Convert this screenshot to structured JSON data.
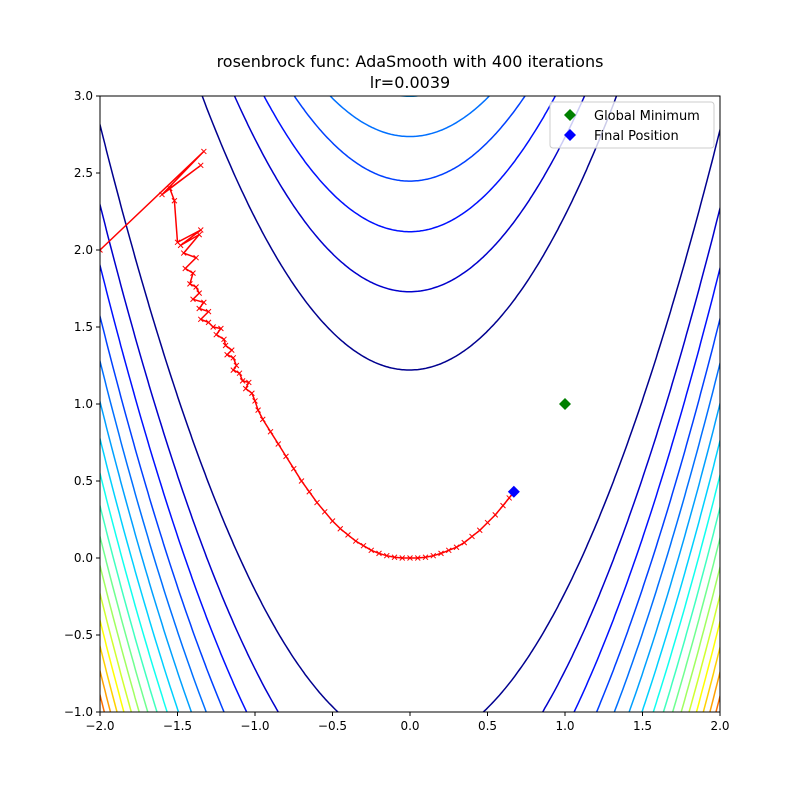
{
  "chart_data": {
    "type": "contour",
    "title": "rosenbrock func: AdaSmooth with 400 iterations",
    "subtitle": "lr=0.0039",
    "xlabel": "",
    "ylabel": "",
    "xlim": [
      -2.0,
      2.0
    ],
    "ylim": [
      -1.0,
      3.0
    ],
    "grid": false,
    "x_ticks": [
      -2.0,
      -1.5,
      -1.0,
      -0.5,
      0.0,
      0.5,
      1.0,
      1.5,
      2.0
    ],
    "y_ticks": [
      -1.0,
      -0.5,
      0.0,
      0.5,
      1.0,
      1.5,
      2.0,
      2.5,
      3.0
    ],
    "x_tick_labels": [
      "−2.0",
      "−1.5",
      "−1.0",
      "−0.5",
      "0.0",
      "0.5",
      "1.0",
      "1.5",
      "2.0"
    ],
    "y_tick_labels": [
      "−1.0",
      "−0.5",
      "0.0",
      "0.5",
      "1.0",
      "1.5",
      "2.0",
      "2.5",
      "3.0"
    ],
    "function": "rosenbrock",
    "contour_levels": [
      150,
      300,
      450,
      600,
      750,
      900,
      1050,
      1200,
      1350,
      1500,
      1650,
      1800,
      1950,
      2100,
      2250,
      2400,
      2550
    ],
    "contour_colors": [
      "#00008f",
      "#0000cc",
      "#0010ff",
      "#0040ff",
      "#0070ff",
      "#00a0ff",
      "#00d0ff",
      "#10ffef",
      "#40ffbf",
      "#70ff8f",
      "#a0ff60",
      "#d0ff30",
      "#ffff00",
      "#ffd000",
      "#ffa000",
      "#ff7000",
      "#ff4000"
    ],
    "legend": {
      "position": "upper right",
      "entries": [
        {
          "label": "Global Minimum",
          "marker": "diamond",
          "color": "#008000"
        },
        {
          "label": "Final Position",
          "marker": "diamond",
          "color": "#0000ff"
        }
      ]
    },
    "global_minimum": {
      "x": 1.0,
      "y": 1.0,
      "color": "#008000"
    },
    "final_position": {
      "x": 0.67,
      "y": 0.43,
      "color": "#0000ff"
    },
    "path_color": "#ff0000",
    "path": [
      [
        -2.0,
        2.0
      ],
      [
        -1.33,
        2.64
      ],
      [
        -1.6,
        2.36
      ],
      [
        -1.35,
        2.55
      ],
      [
        -1.55,
        2.4
      ],
      [
        -1.52,
        2.32
      ],
      [
        -1.5,
        2.05
      ],
      [
        -1.35,
        2.13
      ],
      [
        -1.48,
        2.03
      ],
      [
        -1.36,
        2.1
      ],
      [
        -1.46,
        1.98
      ],
      [
        -1.38,
        1.95
      ],
      [
        -1.45,
        1.88
      ],
      [
        -1.4,
        1.85
      ],
      [
        -1.42,
        1.78
      ],
      [
        -1.38,
        1.76
      ],
      [
        -1.36,
        1.72
      ],
      [
        -1.4,
        1.68
      ],
      [
        -1.33,
        1.66
      ],
      [
        -1.36,
        1.62
      ],
      [
        -1.3,
        1.6
      ],
      [
        -1.35,
        1.55
      ],
      [
        -1.3,
        1.53
      ],
      [
        -1.27,
        1.5
      ],
      [
        -1.22,
        1.49
      ],
      [
        -1.25,
        1.45
      ],
      [
        -1.2,
        1.42
      ],
      [
        -1.19,
        1.38
      ],
      [
        -1.15,
        1.35
      ],
      [
        -1.18,
        1.32
      ],
      [
        -1.14,
        1.3
      ],
      [
        -1.12,
        1.25
      ],
      [
        -1.14,
        1.22
      ],
      [
        -1.1,
        1.2
      ],
      [
        -1.08,
        1.15
      ],
      [
        -1.04,
        1.14
      ],
      [
        -1.06,
        1.1
      ],
      [
        -1.02,
        1.07
      ],
      [
        -1.0,
        1.02
      ],
      [
        -0.98,
        0.96
      ],
      [
        -0.95,
        0.9
      ],
      [
        -0.9,
        0.82
      ],
      [
        -0.85,
        0.74
      ],
      [
        -0.8,
        0.66
      ],
      [
        -0.75,
        0.58
      ],
      [
        -0.7,
        0.5
      ],
      [
        -0.65,
        0.43
      ],
      [
        -0.6,
        0.36
      ],
      [
        -0.55,
        0.3
      ],
      [
        -0.5,
        0.24
      ],
      [
        -0.45,
        0.19
      ],
      [
        -0.4,
        0.15
      ],
      [
        -0.35,
        0.11
      ],
      [
        -0.3,
        0.08
      ],
      [
        -0.25,
        0.05
      ],
      [
        -0.2,
        0.03
      ],
      [
        -0.15,
        0.015
      ],
      [
        -0.1,
        0.005
      ],
      [
        -0.05,
        0.0
      ],
      [
        0.0,
        0.0
      ],
      [
        0.05,
        0.0
      ],
      [
        0.1,
        0.005
      ],
      [
        0.15,
        0.015
      ],
      [
        0.2,
        0.03
      ],
      [
        0.25,
        0.05
      ],
      [
        0.3,
        0.07
      ],
      [
        0.35,
        0.1
      ],
      [
        0.4,
        0.14
      ],
      [
        0.45,
        0.18
      ],
      [
        0.5,
        0.23
      ],
      [
        0.55,
        0.28
      ],
      [
        0.6,
        0.34
      ],
      [
        0.64,
        0.39
      ],
      [
        0.67,
        0.43
      ]
    ]
  }
}
